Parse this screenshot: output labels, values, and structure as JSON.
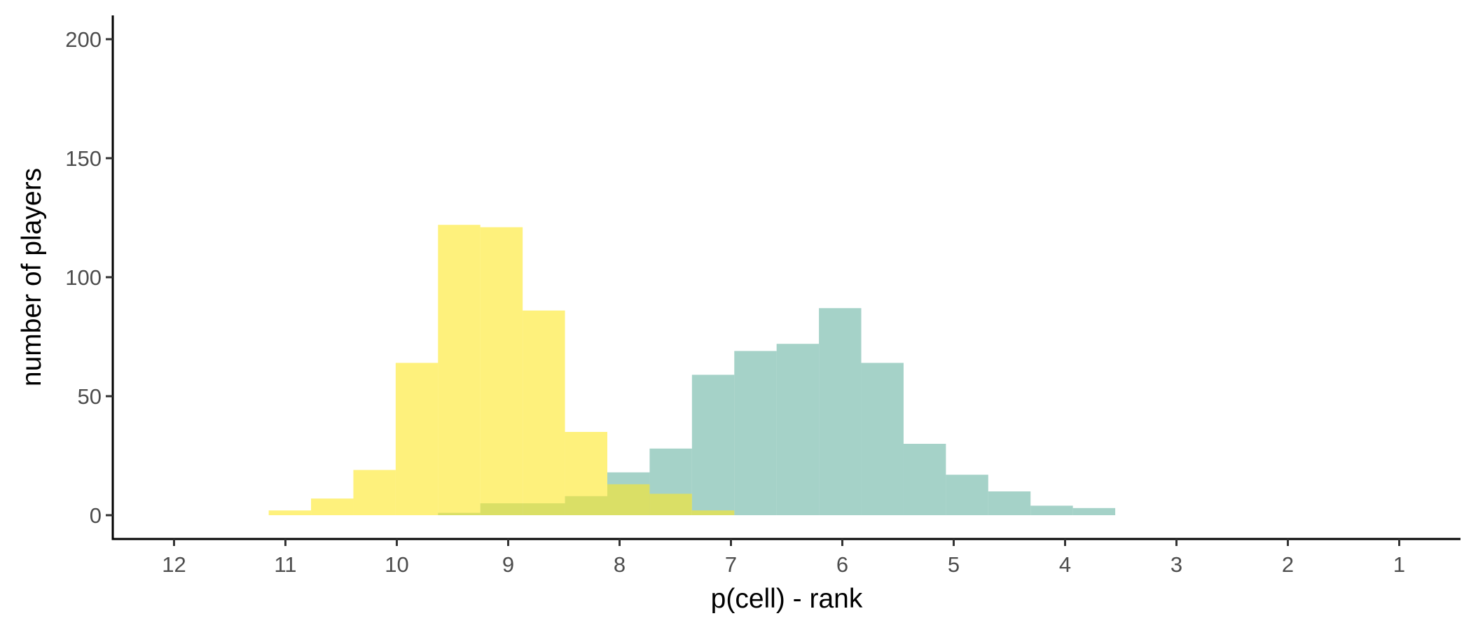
{
  "chart_data": {
    "type": "histogram",
    "xlabel": "p(cell) - rank",
    "ylabel": "number of players",
    "x_reversed": true,
    "xlim": [
      12.55,
      0.45
    ],
    "ylim": [
      -10,
      210
    ],
    "x_ticks": [
      12,
      11,
      10,
      9,
      8,
      7,
      6,
      5,
      4,
      3,
      2,
      1
    ],
    "x_tick_labels": [
      "12",
      "11",
      "10",
      "9",
      "8",
      "7",
      "6",
      "5",
      "4",
      "3",
      "2",
      "1"
    ],
    "y_ticks": [
      0,
      50,
      100,
      150,
      200
    ],
    "y_tick_labels": [
      "0",
      "50",
      "100",
      "150",
      "200"
    ],
    "bin_width": 0.38,
    "grid": false,
    "legend": "none",
    "series": [
      {
        "color": "#7fbfb0",
        "opacity": 0.7,
        "bins": [
          {
            "x_from": 9.63,
            "x_to": 9.25,
            "count": 1
          },
          {
            "x_from": 9.25,
            "x_to": 8.87,
            "count": 5
          },
          {
            "x_from": 8.87,
            "x_to": 8.49,
            "count": 5
          },
          {
            "x_from": 8.49,
            "x_to": 8.11,
            "count": 8
          },
          {
            "x_from": 8.11,
            "x_to": 7.73,
            "count": 18
          },
          {
            "x_from": 7.73,
            "x_to": 7.35,
            "count": 28
          },
          {
            "x_from": 7.35,
            "x_to": 6.97,
            "count": 59
          },
          {
            "x_from": 6.97,
            "x_to": 6.59,
            "count": 69
          },
          {
            "x_from": 6.59,
            "x_to": 6.21,
            "count": 72
          },
          {
            "x_from": 6.21,
            "x_to": 5.83,
            "count": 87
          },
          {
            "x_from": 5.83,
            "x_to": 5.45,
            "count": 64
          },
          {
            "x_from": 5.45,
            "x_to": 5.07,
            "count": 30
          },
          {
            "x_from": 5.07,
            "x_to": 4.69,
            "count": 17
          },
          {
            "x_from": 4.69,
            "x_to": 4.31,
            "count": 10
          },
          {
            "x_from": 4.31,
            "x_to": 3.93,
            "count": 4
          },
          {
            "x_from": 3.93,
            "x_to": 3.55,
            "count": 3
          }
        ]
      },
      {
        "color": "#fde725",
        "opacity": 0.6,
        "bins": [
          {
            "x_from": 11.15,
            "x_to": 10.77,
            "count": 2
          },
          {
            "x_from": 10.77,
            "x_to": 10.39,
            "count": 7
          },
          {
            "x_from": 10.39,
            "x_to": 10.01,
            "count": 19
          },
          {
            "x_from": 10.01,
            "x_to": 9.63,
            "count": 64
          },
          {
            "x_from": 9.63,
            "x_to": 9.25,
            "count": 122
          },
          {
            "x_from": 9.25,
            "x_to": 8.87,
            "count": 121
          },
          {
            "x_from": 8.87,
            "x_to": 8.49,
            "count": 86
          },
          {
            "x_from": 8.49,
            "x_to": 8.11,
            "count": 35
          },
          {
            "x_from": 8.11,
            "x_to": 7.73,
            "count": 13
          },
          {
            "x_from": 7.73,
            "x_to": 7.35,
            "count": 9
          },
          {
            "x_from": 7.35,
            "x_to": 6.97,
            "count": 2
          }
        ]
      }
    ]
  }
}
